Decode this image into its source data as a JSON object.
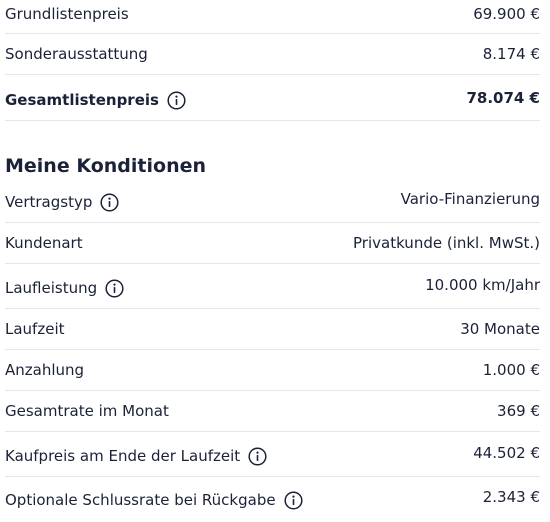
{
  "price_summary": {
    "rows": [
      {
        "label": "Grundlistenpreis",
        "value": "69.900 €"
      },
      {
        "label": "Sonderausstattung",
        "value": "8.174 €"
      },
      {
        "label": "Gesamtlistenpreis",
        "value": "78.074 €"
      }
    ]
  },
  "conditions": {
    "title": "Meine Konditionen",
    "rows": [
      {
        "label": "Vertragstyp",
        "value": "Vario-Finanzierung"
      },
      {
        "label": "Kundenart",
        "value": "Privatkunde (inkl. MwSt.)"
      },
      {
        "label": "Laufleistung",
        "value": "10.000 km/Jahr"
      },
      {
        "label": "Laufzeit",
        "value": "30 Monate"
      },
      {
        "label": "Anzahlung",
        "value": "1.000 €"
      },
      {
        "label": "Gesamtrate im Monat",
        "value": "369 €"
      },
      {
        "label": "Kaufpreis am Ende der Laufzeit",
        "value": "44.502 €"
      },
      {
        "label": "Optionale Schlussrate bei Rückgabe",
        "value": "2.343 €"
      }
    ]
  },
  "icons": {
    "info": "info-circle-icon"
  },
  "colors": {
    "text": "#1b2238",
    "divider": "#e4e6ec"
  }
}
